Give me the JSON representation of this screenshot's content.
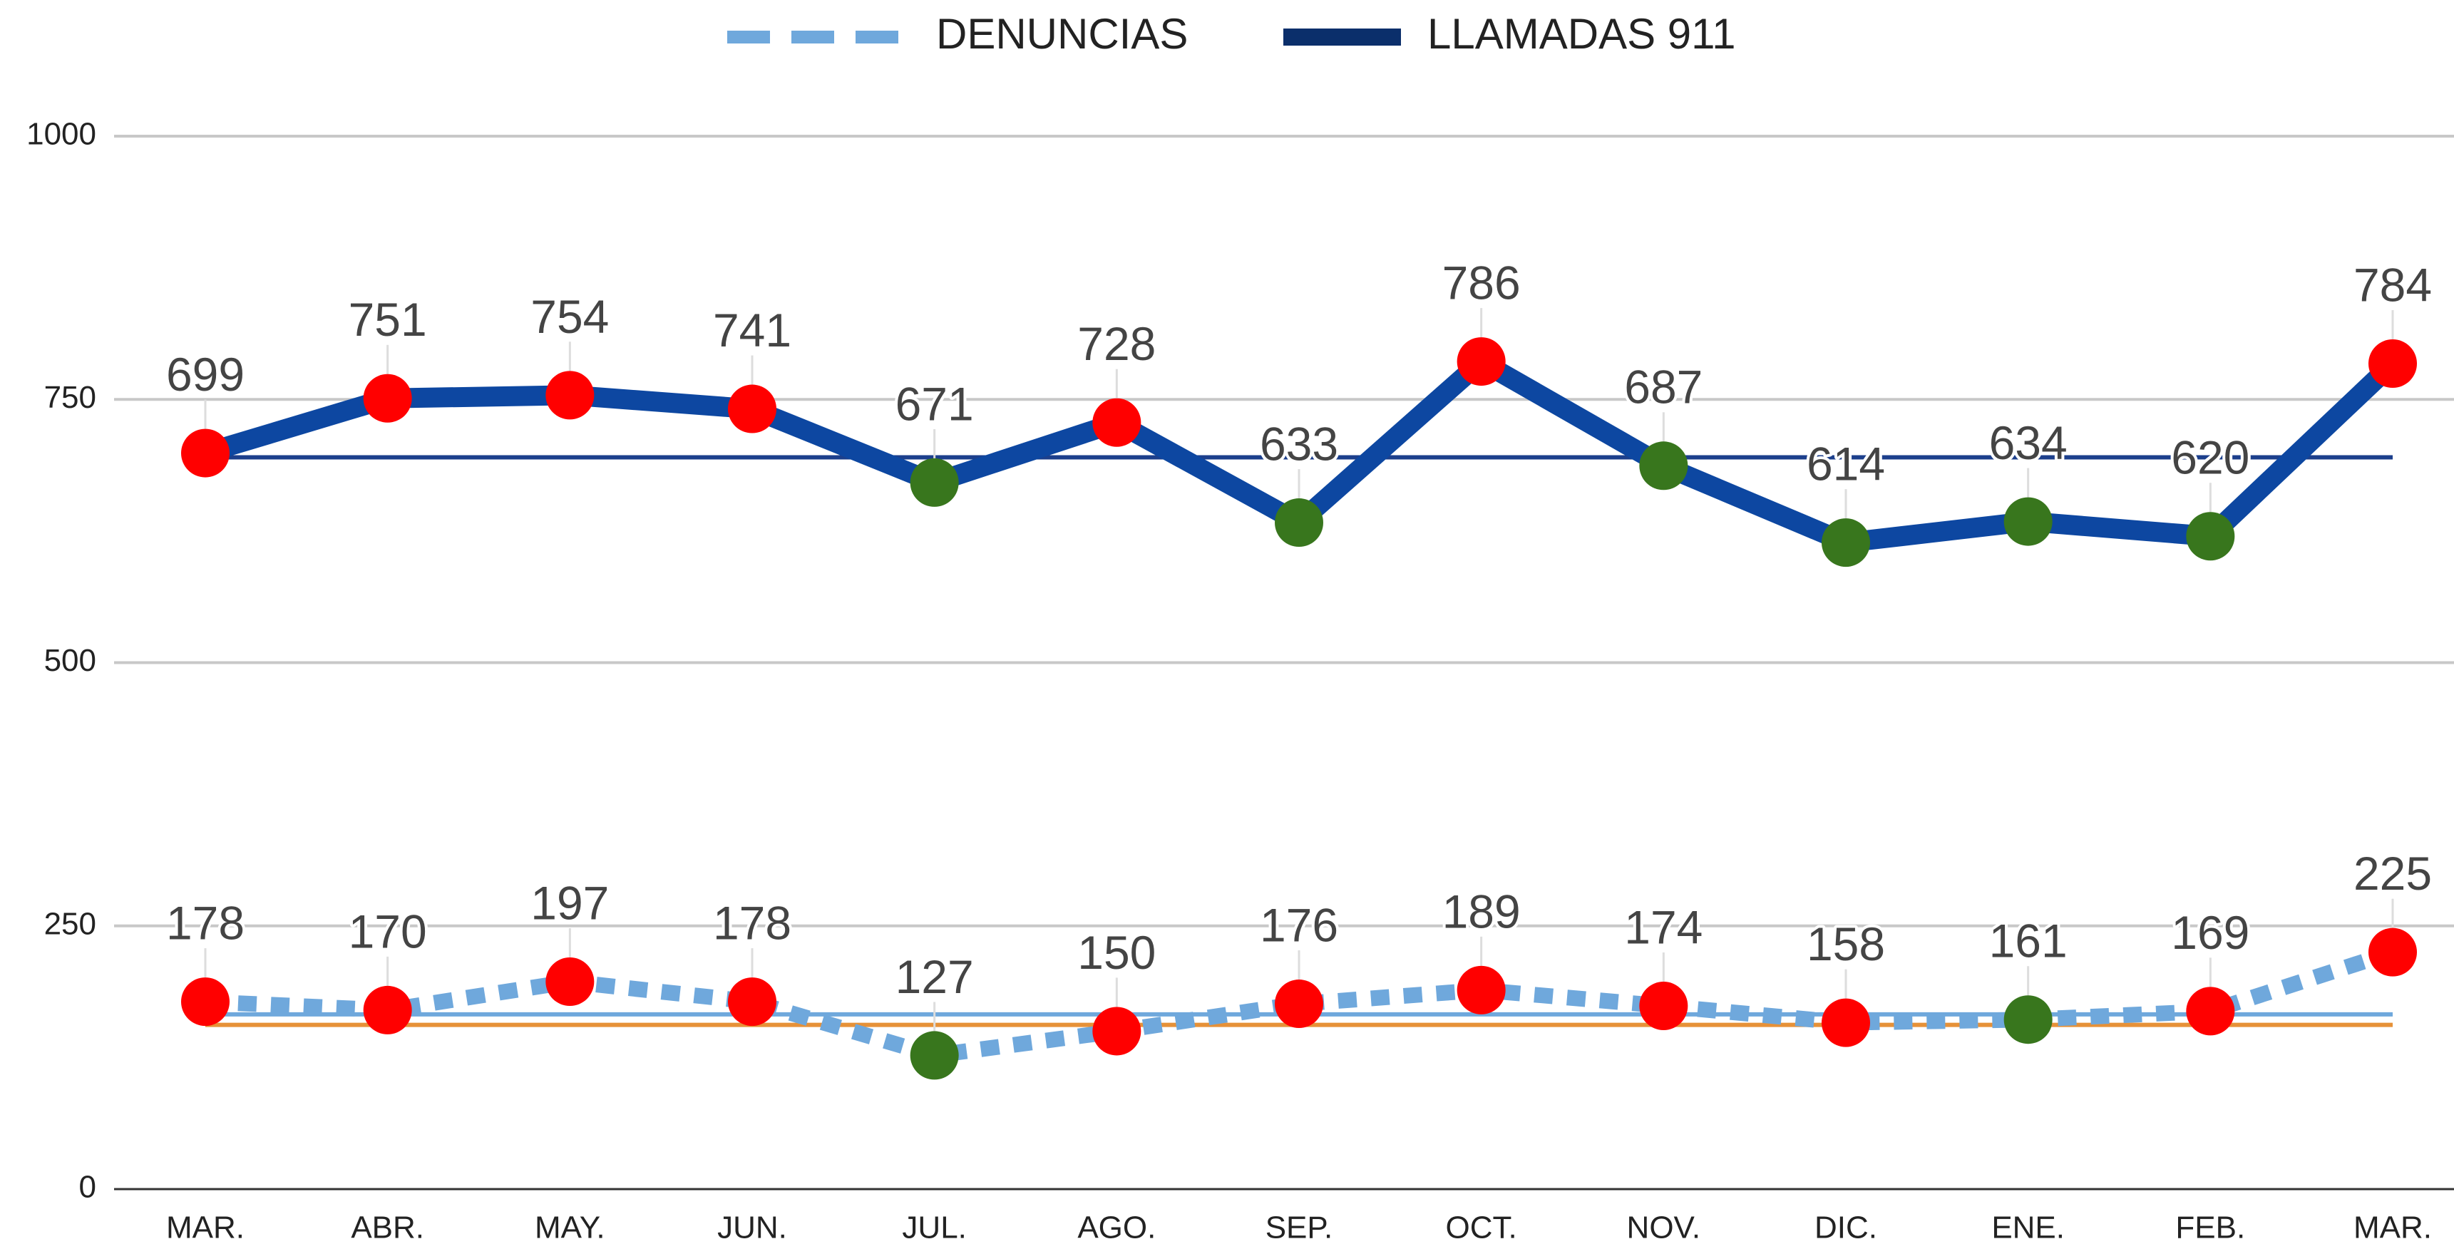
{
  "chart_data": {
    "type": "line",
    "categories": [
      "MAR.",
      "ABR.",
      "MAY.",
      "JUN.",
      "JUL.",
      "AGO.",
      "SEP.",
      "OCT.",
      "NOV.",
      "DIC.",
      "ENE.",
      "FEB.",
      "MAR."
    ],
    "series": [
      {
        "name": "DENUNCIAS",
        "color": "#6fa8dc",
        "dashed": true,
        "values": [
          178,
          170,
          197,
          178,
          127,
          150,
          176,
          189,
          174,
          158,
          161,
          169,
          225
        ],
        "marker_colors": [
          "#ff0000",
          "#ff0000",
          "#ff0000",
          "#ff0000",
          "#38761d",
          "#ff0000",
          "#ff0000",
          "#ff0000",
          "#ff0000",
          "#ff0000",
          "#38761d",
          "#ff0000",
          "#ff0000"
        ]
      },
      {
        "name": "LLAMADAS 911",
        "color": "#0d47a1",
        "dashed": false,
        "values": [
          699,
          751,
          754,
          741,
          671,
          728,
          633,
          786,
          687,
          614,
          634,
          620,
          784
        ],
        "marker_colors": [
          "#ff0000",
          "#ff0000",
          "#ff0000",
          "#ff0000",
          "#38761d",
          "#ff0000",
          "#38761d",
          "#ff0000",
          "#38761d",
          "#38761d",
          "#38761d",
          "#38761d",
          "#ff0000"
        ]
      }
    ],
    "reference_lines": [
      {
        "value": 695,
        "color": "#1c3f8c"
      },
      {
        "value": 166,
        "color": "#6fa8dc"
      },
      {
        "value": 156,
        "color": "#e69138"
      }
    ],
    "ylim": [
      0,
      1000
    ],
    "yticks": [
      0,
      250,
      500,
      750,
      1000
    ],
    "grid": true,
    "legend": "top"
  }
}
